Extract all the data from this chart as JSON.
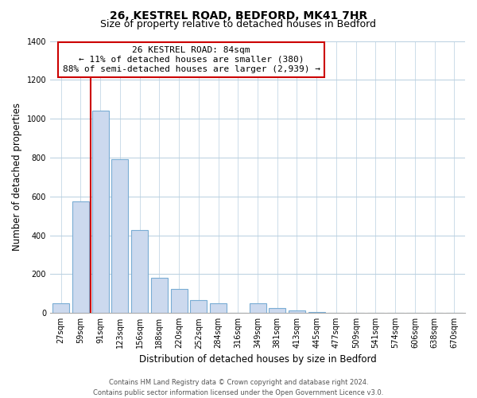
{
  "title": "26, KESTREL ROAD, BEDFORD, MK41 7HR",
  "subtitle": "Size of property relative to detached houses in Bedford",
  "xlabel": "Distribution of detached houses by size in Bedford",
  "ylabel": "Number of detached properties",
  "bar_labels": [
    "27sqm",
    "59sqm",
    "91sqm",
    "123sqm",
    "156sqm",
    "188sqm",
    "220sqm",
    "252sqm",
    "284sqm",
    "316sqm",
    "349sqm",
    "381sqm",
    "413sqm",
    "445sqm",
    "477sqm",
    "509sqm",
    "541sqm",
    "574sqm",
    "606sqm",
    "638sqm",
    "670sqm"
  ],
  "bar_values": [
    50,
    575,
    1040,
    790,
    425,
    180,
    125,
    65,
    50,
    0,
    50,
    25,
    15,
    5,
    0,
    0,
    0,
    0,
    0,
    0,
    0
  ],
  "bar_color": "#ccd9ee",
  "bar_edge_color": "#7aadd4",
  "marker_line_color": "#cc0000",
  "annotation_line1": "26 KESTREL ROAD: 84sqm",
  "annotation_line2": "← 11% of detached houses are smaller (380)",
  "annotation_line3": "88% of semi-detached houses are larger (2,939) →",
  "annotation_box_color": "#ffffff",
  "annotation_box_edge_color": "#cc0000",
  "ylim": [
    0,
    1400
  ],
  "yticks": [
    0,
    200,
    400,
    600,
    800,
    1000,
    1200,
    1400
  ],
  "footer_line1": "Contains HM Land Registry data © Crown copyright and database right 2024.",
  "footer_line2": "Contains public sector information licensed under the Open Government Licence v3.0.",
  "bg_color": "#ffffff",
  "grid_color": "#b8cfe0",
  "title_fontsize": 10,
  "subtitle_fontsize": 9,
  "axis_label_fontsize": 8.5,
  "tick_fontsize": 7,
  "annotation_fontsize": 8,
  "footer_fontsize": 6
}
